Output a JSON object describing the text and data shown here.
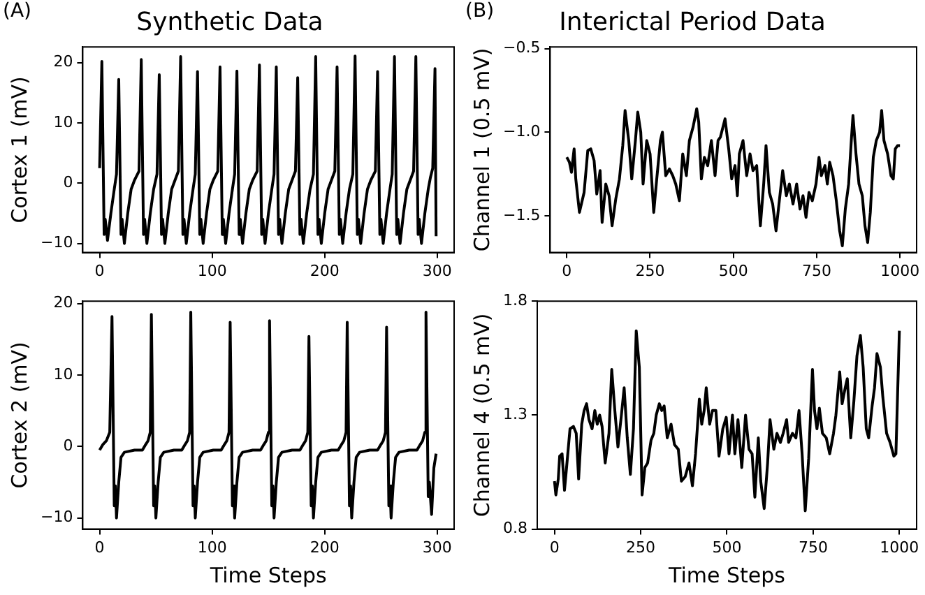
{
  "chart_data": [
    {
      "type": "line",
      "title": "Synthetic Data",
      "ylabel": "Cortex 1 (mV)",
      "annotations": [
        "(A)"
      ],
      "xlim": [
        -15,
        315
      ],
      "ylim": [
        -11.5,
        22.6
      ],
      "xticks": [
        0,
        100,
        200,
        300
      ],
      "yticks": [
        {
          "value": -10,
          "label": "−10"
        },
        0,
        10,
        20
      ],
      "grid": false,
      "legend": false,
      "marker": "none",
      "line_style": "solid",
      "series": [
        {
          "color": "#000000",
          "x": [
            0,
            2,
            4,
            5,
            7,
            10,
            13,
            15,
            17,
            19,
            20,
            22,
            25,
            28,
            31,
            35,
            37,
            39,
            40,
            42,
            45,
            48,
            51,
            53,
            55,
            56,
            58,
            61,
            64,
            67,
            70,
            72,
            74,
            75,
            77,
            80,
            83,
            85,
            87,
            89,
            90,
            92,
            95,
            98,
            101,
            105,
            107,
            109,
            110,
            112,
            115,
            118,
            120,
            122,
            124,
            125,
            127,
            130,
            133,
            136,
            140,
            142,
            144,
            145,
            147,
            150,
            153,
            155,
            157,
            159,
            160,
            162,
            165,
            168,
            171,
            174,
            176,
            178,
            179,
            181,
            184,
            187,
            190,
            192,
            194,
            195,
            197,
            200,
            203,
            206,
            209,
            211,
            213,
            214,
            216,
            219,
            222,
            225,
            227,
            229,
            230,
            232,
            235,
            238,
            241,
            245,
            247,
            249,
            250,
            252,
            255,
            258,
            260,
            262,
            264,
            265,
            267,
            270,
            273,
            276,
            279,
            281,
            283,
            284,
            286,
            289,
            292,
            294,
            296,
            298,
            299
          ],
          "values": [
            2.5,
            20.2,
            -8.5,
            -6,
            -9.5,
            -5,
            -1,
            1.5,
            17.2,
            -8.5,
            -6,
            -10,
            -5,
            -1,
            0.5,
            2,
            20.5,
            -8.5,
            -6,
            -10,
            -5,
            -1,
            1.5,
            18,
            -8.5,
            -6,
            -10,
            -5,
            -1,
            0.5,
            2,
            21,
            -8.5,
            -6,
            -10,
            -5,
            -1,
            1.5,
            18.5,
            -8.5,
            -6,
            -10,
            -5,
            -1,
            0.5,
            2,
            19.3,
            -8.5,
            -6,
            -10,
            -5,
            -1,
            1.5,
            18.6,
            -8.5,
            -6,
            -10,
            -5,
            -1,
            0.5,
            2,
            19.6,
            -8.5,
            -6,
            -10,
            -5,
            -1,
            1.5,
            19.3,
            -8.5,
            -6,
            -10,
            -5,
            -1,
            0.5,
            2,
            17.5,
            -8.5,
            -6,
            -10,
            -5,
            -1,
            1.5,
            21,
            -8.5,
            -6,
            -10,
            -5,
            -1,
            0.5,
            2,
            19.3,
            -8.5,
            -6,
            -10,
            -5,
            -1,
            1.5,
            21.1,
            -8.5,
            -6,
            -10,
            -5,
            -1,
            0.5,
            2,
            18.5,
            -8.5,
            -6,
            -10,
            -5,
            -1,
            1.5,
            21,
            -8.5,
            -6,
            -10,
            -5,
            -1,
            0.5,
            2,
            21,
            -8.5,
            -6,
            -10,
            -5,
            -1,
            1,
            2.5,
            19,
            -8.8
          ]
        }
      ]
    },
    {
      "type": "line",
      "title": "Interictal Period Data",
      "ylabel": "Channel 1 (0.5 mV)",
      "annotations": [
        "(B)"
      ],
      "xlim": [
        -50,
        1050
      ],
      "ylim": [
        -1.72,
        -0.49
      ],
      "xticks": [
        0,
        250,
        500,
        750,
        1000
      ],
      "yticks": [
        {
          "value": -1.5,
          "label": "−1.5"
        },
        {
          "value": -1.0,
          "label": "−1.0"
        },
        {
          "value": -0.5,
          "label": "−0.5"
        }
      ],
      "grid": false,
      "legend": false,
      "marker": "none",
      "line_style": "solid",
      "series": [
        {
          "color": "#000000",
          "x": [
            0,
            8,
            14,
            22,
            27,
            38,
            52,
            63,
            72,
            82,
            90,
            100,
            106,
            117,
            127,
            136,
            147,
            158,
            168,
            175,
            186,
            195,
            206,
            213,
            222,
            229,
            240,
            250,
            261,
            270,
            281,
            287,
            297,
            308,
            318,
            327,
            338,
            348,
            359,
            368,
            379,
            390,
            396,
            404,
            413,
            423,
            434,
            445,
            454,
            461,
            475,
            486,
            495,
            505,
            512,
            518,
            529,
            540,
            550,
            559,
            570,
            581,
            591,
            598,
            608,
            618,
            628,
            638,
            648,
            659,
            668,
            679,
            690,
            700,
            709,
            718,
            727,
            737,
            748,
            757,
            764,
            775,
            782,
            789,
            799,
            809,
            819,
            827,
            836,
            846,
            854,
            859,
            868,
            877,
            887,
            895,
            903,
            911,
            920,
            929,
            939,
            945,
            952,
            963,
            973,
            980,
            986,
            993,
            1000
          ],
          "values": [
            -1.15,
            -1.18,
            -1.24,
            -1.1,
            -1.28,
            -1.48,
            -1.36,
            -1.11,
            -1.1,
            -1.17,
            -1.37,
            -1.23,
            -1.54,
            -1.31,
            -1.38,
            -1.56,
            -1.4,
            -1.28,
            -1.08,
            -0.87,
            -1.05,
            -1.28,
            -1.05,
            -0.88,
            -1.0,
            -1.31,
            -1.05,
            -1.13,
            -1.48,
            -1.28,
            -1.05,
            -1.0,
            -1.26,
            -1.22,
            -1.26,
            -1.31,
            -1.41,
            -1.13,
            -1.26,
            -1.05,
            -0.97,
            -0.86,
            -0.94,
            -1.28,
            -1.15,
            -1.2,
            -1.05,
            -1.26,
            -1.05,
            -1.03,
            -0.92,
            -1.1,
            -1.28,
            -1.2,
            -1.38,
            -1.13,
            -1.05,
            -1.26,
            -1.13,
            -1.23,
            -1.2,
            -1.56,
            -1.31,
            -1.08,
            -1.36,
            -1.43,
            -1.59,
            -1.41,
            -1.23,
            -1.38,
            -1.31,
            -1.43,
            -1.31,
            -1.46,
            -1.38,
            -1.51,
            -1.36,
            -1.41,
            -1.31,
            -1.15,
            -1.26,
            -1.2,
            -1.31,
            -1.18,
            -1.26,
            -1.41,
            -1.59,
            -1.68,
            -1.46,
            -1.31,
            -1.05,
            -0.9,
            -1.13,
            -1.31,
            -1.38,
            -1.56,
            -1.66,
            -1.48,
            -1.15,
            -1.05,
            -1.0,
            -0.87,
            -1.05,
            -1.13,
            -1.26,
            -1.28,
            -1.1,
            -1.08,
            -1.08
          ]
        }
      ]
    },
    {
      "type": "line",
      "xlabel": "Time Steps",
      "ylabel": "Cortex 2 (mV)",
      "xlim": [
        -15,
        315
      ],
      "ylim": [
        -11.55,
        20.35
      ],
      "xticks": [
        0,
        100,
        200,
        300
      ],
      "yticks": [
        {
          "value": -10,
          "label": "−10"
        },
        0,
        10,
        20
      ],
      "grid": false,
      "legend": false,
      "marker": "none",
      "line_style": "solid",
      "series": [
        {
          "color": "#000000",
          "x": [
            0,
            3,
            6,
            9,
            11,
            13,
            14,
            15,
            17,
            19,
            22,
            31,
            38,
            41,
            43,
            45,
            46,
            48,
            49,
            50,
            52,
            54,
            57,
            66,
            73,
            76,
            78,
            80,
            81,
            83,
            84,
            85,
            87,
            89,
            92,
            101,
            108,
            111,
            113,
            115,
            116,
            118,
            119,
            120,
            122,
            124,
            127,
            136,
            143,
            146,
            148,
            150,
            151,
            153,
            154,
            155,
            157,
            159,
            162,
            171,
            178,
            181,
            183,
            185,
            186,
            188,
            189,
            190,
            192,
            194,
            197,
            206,
            212,
            215,
            217,
            219,
            220,
            222,
            223,
            224,
            226,
            228,
            231,
            240,
            247,
            250,
            252,
            254,
            255,
            257,
            258,
            259,
            261,
            263,
            266,
            275,
            282,
            285,
            287,
            289,
            290,
            292,
            293,
            295,
            297,
            299
          ],
          "values": [
            -0.5,
            0.3,
            0.8,
            2,
            18.2,
            -8.3,
            -5.5,
            -10,
            -5,
            -1.5,
            -0.8,
            -0.5,
            -0.5,
            0.3,
            0.8,
            2,
            18.5,
            -8.3,
            -5.5,
            -10,
            -5,
            -1.5,
            -0.8,
            -0.5,
            -0.5,
            0.3,
            0.8,
            2,
            18.8,
            -8.3,
            -5.5,
            -10,
            -5,
            -1.5,
            -0.8,
            -0.5,
            -0.5,
            0.3,
            0.8,
            2,
            17.4,
            -8.3,
            -5.5,
            -10,
            -5,
            -1.5,
            -0.8,
            -0.5,
            -0.5,
            0.3,
            0.8,
            2,
            17.6,
            -8.3,
            -5.5,
            -10,
            -5,
            -1.5,
            -0.8,
            -0.5,
            -0.5,
            0.3,
            0.8,
            2,
            15.4,
            -8.3,
            -5.5,
            -10,
            -5,
            -1.5,
            -0.8,
            -0.5,
            -0.5,
            0.3,
            0.8,
            2,
            17.4,
            -8.3,
            -5.5,
            -10,
            -5,
            -1.5,
            -0.8,
            -0.5,
            -0.5,
            0.3,
            0.8,
            2,
            16.7,
            -8.3,
            -5.5,
            -10,
            -5,
            -1.5,
            -0.8,
            -0.5,
            -0.5,
            0.3,
            0.8,
            2,
            18.8,
            -7,
            -5,
            -9.5,
            -3,
            -1
          ]
        }
      ]
    },
    {
      "type": "line",
      "xlabel": "Time Steps",
      "ylabel": "Channel 4 (0.5 mV)",
      "xlim": [
        -50,
        1050
      ],
      "ylim": [
        0.8,
        1.8
      ],
      "xticks": [
        0,
        250,
        500,
        750,
        1000
      ],
      "yticks": [
        0.8,
        1.3,
        1.8
      ],
      "grid": false,
      "legend": false,
      "marker": "none",
      "line_style": "solid",
      "series": [
        {
          "color": "#000000",
          "x": [
            0,
            4,
            11,
            15,
            22,
            29,
            35,
            45,
            55,
            63,
            70,
            79,
            86,
            93,
            100,
            109,
            117,
            124,
            131,
            138,
            147,
            158,
            166,
            175,
            184,
            194,
            202,
            211,
            220,
            229,
            237,
            246,
            254,
            262,
            270,
            280,
            288,
            295,
            304,
            311,
            318,
            327,
            338,
            348,
            359,
            368,
            379,
            390,
            400,
            409,
            420,
            427,
            434,
            440,
            450,
            458,
            468,
            477,
            488,
            498,
            506,
            516,
            523,
            532,
            543,
            554,
            564,
            573,
            581,
            591,
            598,
            608,
            618,
            625,
            636,
            645,
            655,
            663,
            673,
            679,
            690,
            700,
            709,
            718,
            727,
            737,
            748,
            754,
            761,
            768,
            777,
            788,
            798,
            809,
            816,
            827,
            834,
            843,
            849,
            859,
            868,
            877,
            887,
            895,
            904,
            911,
            921,
            928,
            935,
            945,
            952,
            963,
            973,
            984,
            990,
            1000
          ],
          "values": [
            1.01,
            0.95,
            1.02,
            1.12,
            1.13,
            0.97,
            1.07,
            1.24,
            1.25,
            1.22,
            1.02,
            1.26,
            1.32,
            1.35,
            1.28,
            1.24,
            1.32,
            1.26,
            1.3,
            1.25,
            1.09,
            1.22,
            1.5,
            1.32,
            1.16,
            1.3,
            1.42,
            1.2,
            1.04,
            1.24,
            1.67,
            1.51,
            0.95,
            1.07,
            1.09,
            1.19,
            1.22,
            1.3,
            1.35,
            1.32,
            1.34,
            1.2,
            1.26,
            1.17,
            1.15,
            1.01,
            1.03,
            1.09,
            0.99,
            1.13,
            1.37,
            1.26,
            1.32,
            1.42,
            1.26,
            1.32,
            1.32,
            1.12,
            1.24,
            1.29,
            1.13,
            1.3,
            1.13,
            1.28,
            1.07,
            1.3,
            1.15,
            1.13,
            0.94,
            1.2,
            1.01,
            0.89,
            1.09,
            1.28,
            1.15,
            1.22,
            1.18,
            1.22,
            1.28,
            1.18,
            1.22,
            1.2,
            1.32,
            1.13,
            0.88,
            1.11,
            1.5,
            1.32,
            1.24,
            1.33,
            1.22,
            1.2,
            1.13,
            1.22,
            1.3,
            1.49,
            1.35,
            1.42,
            1.46,
            1.2,
            1.36,
            1.56,
            1.65,
            1.51,
            1.24,
            1.2,
            1.34,
            1.42,
            1.57,
            1.51,
            1.38,
            1.22,
            1.18,
            1.12,
            1.13,
            1.67
          ]
        }
      ]
    }
  ]
}
